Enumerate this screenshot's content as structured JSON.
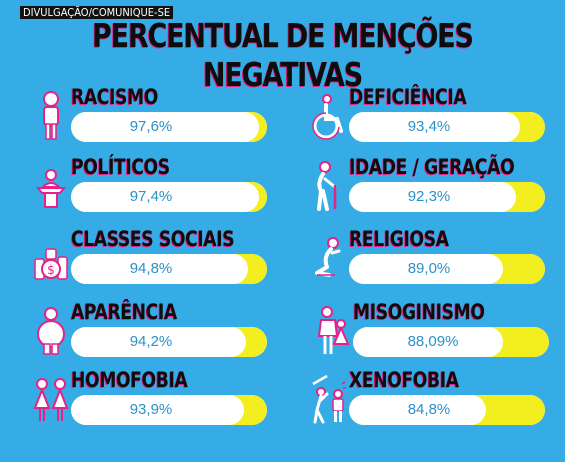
{
  "credit": "DIVULGAÇÃO/COMUNIQUE-SE",
  "title": "PERCENTUAL DE MENÇÕES NEGATIVAS",
  "colors": {
    "background": "#35ace6",
    "label_text": "#0d0d0d",
    "label_shadow": "#e6218a",
    "bar": "#ffffff",
    "bar_accent": "#f2ee1f",
    "value_text": "#2a92c9"
  },
  "chart_data": {
    "type": "bar",
    "orientation": "horizontal",
    "title": "PERCENTUAL DE MENÇÕES NEGATIVAS",
    "categories": [
      "RACISMO",
      "POLÍTICOS",
      "CLASSES SOCIAIS",
      "APARÊNCIA",
      "HOMOFOBIA",
      "DEFICIÊNCIA",
      "IDADE / GERAÇÃO",
      "RELIGIOSA",
      "MISOGINISMO",
      "XENOFOBIA"
    ],
    "values": [
      97.6,
      97.4,
      94.8,
      94.2,
      93.9,
      93.4,
      92.3,
      89.0,
      88.09,
      84.8
    ],
    "value_labels": [
      "97,6%",
      "97,4%",
      "94,8%",
      "94,2%",
      "93,9%",
      "93,4%",
      "92,3%",
      "89,0%",
      "88,09%",
      "84,8%"
    ],
    "icons": [
      "person-icon",
      "podium-speaker-icon",
      "coins-money-icon",
      "heavy-person-icon",
      "two-women-icon",
      "wheelchair-icon",
      "elderly-cane-icon",
      "kneeling-prayer-icon",
      "man-woman-icon",
      "attacker-stick-icon"
    ],
    "xlim": [
      0,
      100
    ],
    "unit": "%"
  }
}
